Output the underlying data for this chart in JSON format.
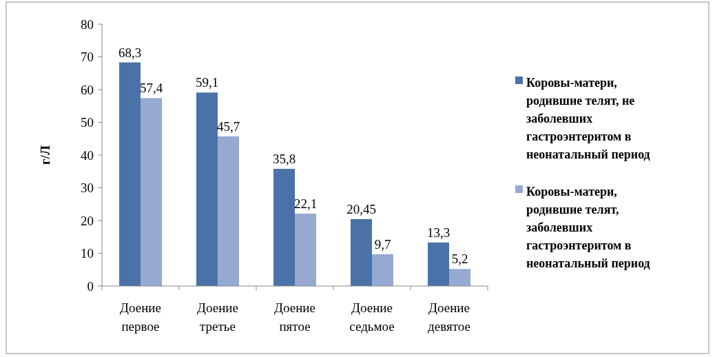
{
  "chart_data": {
    "type": "bar",
    "ylabel": "г/Л",
    "categories": [
      "Доение первое",
      "Доение третье",
      "Доение пятое",
      "Доение седьмое",
      "Доение девятое"
    ],
    "series": [
      {
        "name": "Коровы-матери, родившие телят, не заболевших гастроэнтеритом в неонатальный период",
        "color": "#4a72a8",
        "values": [
          68.3,
          59.1,
          35.8,
          20.45,
          13.3
        ],
        "value_labels": [
          "68,3",
          "59,1",
          "35,8",
          "20,45",
          "13,3"
        ]
      },
      {
        "name": "Коровы-матери, родившие телят, заболевших гастроэнтеритом в неонатальный период",
        "color": "#95a9d1",
        "values": [
          57.4,
          45.7,
          22.1,
          9.7,
          5.2
        ],
        "value_labels": [
          "57,4",
          "45,7",
          "22,1",
          "9,7",
          "5,2"
        ]
      }
    ],
    "ylim": [
      0,
      80
    ],
    "yticks": [
      0,
      10,
      20,
      30,
      40,
      50,
      60,
      70,
      80
    ],
    "grid": false,
    "legend": "right"
  }
}
